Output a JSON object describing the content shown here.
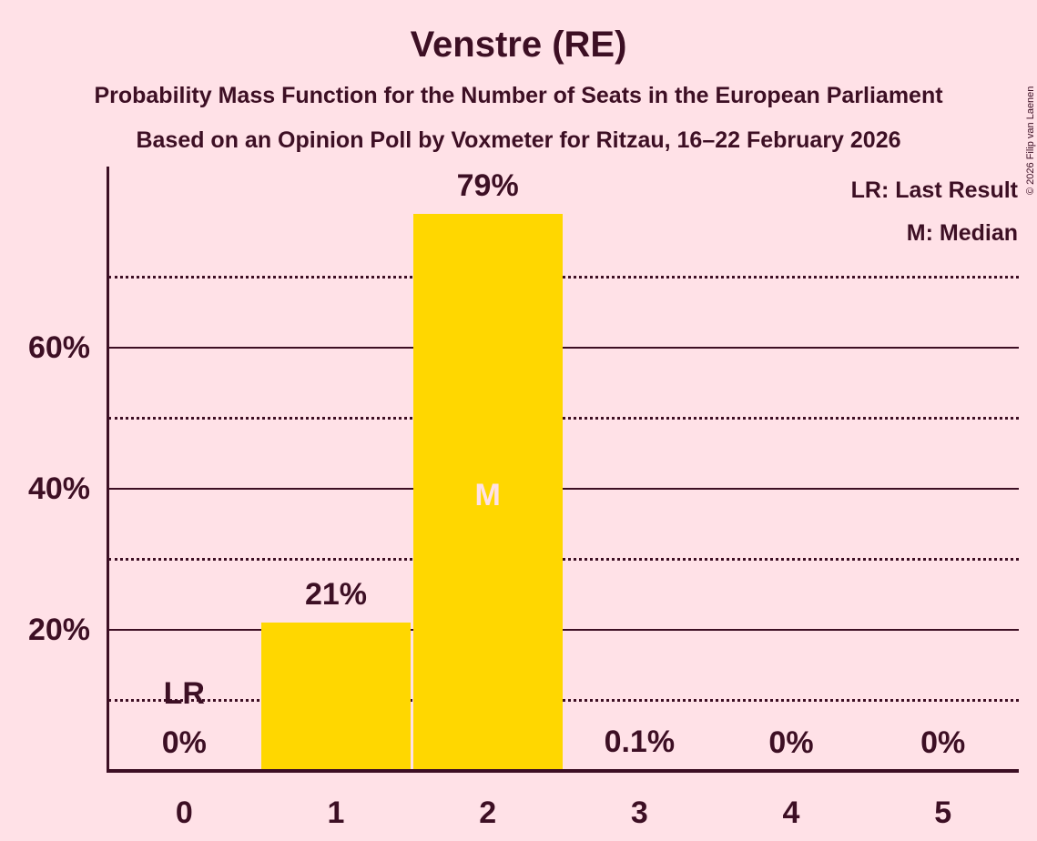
{
  "title": "Venstre (RE)",
  "subtitle_line1": "Probability Mass Function for the Number of Seats in the European Parliament",
  "subtitle_line2": "Based on an Opinion Poll by Voxmeter for Ritzau, 16–22 February 2026",
  "legend": {
    "last_result": "LR: Last Result",
    "median": "M: Median"
  },
  "copyright": "© 2026 Filip van Laenen",
  "colors": {
    "background": "#FFE1E7",
    "bar": "#FFD700",
    "text": "#3D0F24"
  },
  "chart_data": {
    "type": "bar",
    "title": "Venstre (RE)",
    "categories": [
      "0",
      "1",
      "2",
      "3",
      "4",
      "5"
    ],
    "values": [
      0,
      21,
      79,
      0.1,
      0,
      0
    ],
    "value_labels": [
      "0%",
      "21%",
      "79%",
      "0.1%",
      "0%",
      "0%"
    ],
    "y_axis": {
      "tick_values": [
        20,
        40,
        60
      ],
      "tick_labels": [
        "20%",
        "40%",
        "60%"
      ],
      "solid_gridlines": [
        20,
        40,
        60
      ],
      "dotted_gridlines": [
        10,
        30,
        50,
        70
      ],
      "ylim": [
        0,
        85.6
      ]
    },
    "annotations": {
      "last_result": {
        "label": "LR",
        "category_index": 0
      },
      "median": {
        "label": "M",
        "category_index": 2
      }
    },
    "legend_position": "top-right",
    "grid": "horizontal"
  }
}
